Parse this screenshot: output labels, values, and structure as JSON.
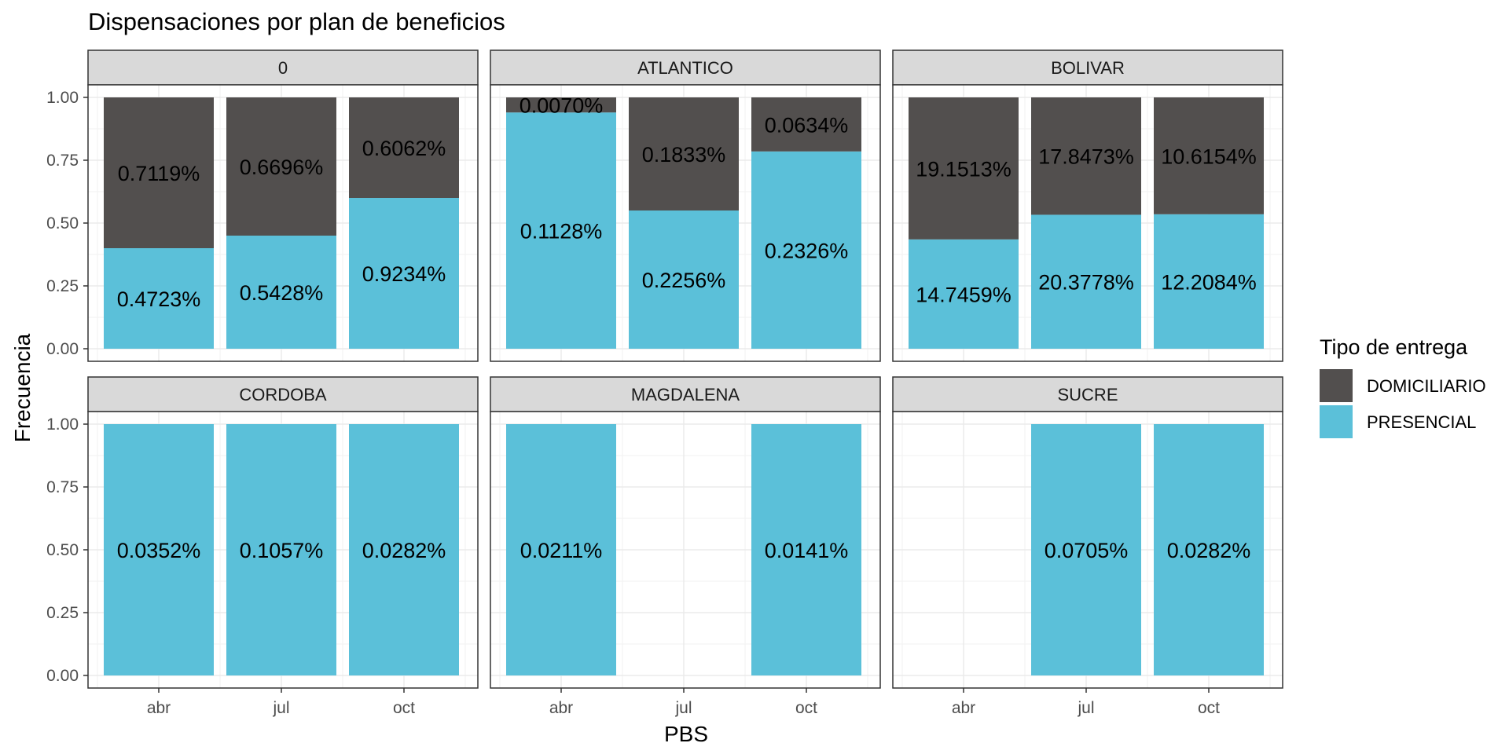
{
  "chart_data": {
    "type": "bar",
    "stacked": true,
    "title": "Dispensaciones por plan de beneficios",
    "xlabel": "PBS",
    "ylabel": "Frecuencia",
    "ylim": [
      0,
      1
    ],
    "yticks": [
      "0.00",
      "0.25",
      "0.50",
      "0.75",
      "1.00"
    ],
    "categories": [
      "abr",
      "jul",
      "oct"
    ],
    "grid": true,
    "legend": {
      "title": "Tipo de entrega",
      "position": "right",
      "items": [
        {
          "name": "DOMICILIARIO",
          "color": "#524f4e"
        },
        {
          "name": "PRESENCIAL",
          "color": "#5bc0d9"
        }
      ]
    },
    "panels": [
      {
        "name": "0",
        "bars": [
          {
            "x": "abr",
            "presencial": 0.4,
            "presencial_label": "0.4723%",
            "domiciliario_label": "0.7119%"
          },
          {
            "x": "jul",
            "presencial": 0.45,
            "presencial_label": "0.5428%",
            "domiciliario_label": "0.6696%"
          },
          {
            "x": "oct",
            "presencial": 0.6,
            "presencial_label": "0.9234%",
            "domiciliario_label": "0.6062%"
          }
        ]
      },
      {
        "name": "ATLANTICO",
        "bars": [
          {
            "x": "abr",
            "presencial": 0.94,
            "presencial_label": "0.1128%",
            "domiciliario_label": "0.0070%"
          },
          {
            "x": "jul",
            "presencial": 0.55,
            "presencial_label": "0.2256%",
            "domiciliario_label": "0.1833%"
          },
          {
            "x": "oct",
            "presencial": 0.785,
            "presencial_label": "0.2326%",
            "domiciliario_label": "0.0634%"
          }
        ]
      },
      {
        "name": "BOLIVAR",
        "bars": [
          {
            "x": "abr",
            "presencial": 0.435,
            "presencial_label": "14.7459%",
            "domiciliario_label": "19.1513%"
          },
          {
            "x": "jul",
            "presencial": 0.533,
            "presencial_label": "20.3778%",
            "domiciliario_label": "17.8473%"
          },
          {
            "x": "oct",
            "presencial": 0.535,
            "presencial_label": "12.2084%",
            "domiciliario_label": "10.6154%"
          }
        ]
      },
      {
        "name": "CORDOBA",
        "bars": [
          {
            "x": "abr",
            "presencial": 1.0,
            "presencial_label": "0.0352%"
          },
          {
            "x": "jul",
            "presencial": 1.0,
            "presencial_label": "0.1057%"
          },
          {
            "x": "oct",
            "presencial": 1.0,
            "presencial_label": "0.0282%"
          }
        ]
      },
      {
        "name": "MAGDALENA",
        "bars": [
          {
            "x": "abr",
            "presencial": 1.0,
            "presencial_label": "0.0211%"
          },
          {
            "x": "oct",
            "presencial": 1.0,
            "presencial_label": "0.0141%"
          }
        ]
      },
      {
        "name": "SUCRE",
        "bars": [
          {
            "x": "jul",
            "presencial": 1.0,
            "presencial_label": "0.0705%"
          },
          {
            "x": "oct",
            "presencial": 1.0,
            "presencial_label": "0.0282%"
          }
        ]
      }
    ]
  }
}
